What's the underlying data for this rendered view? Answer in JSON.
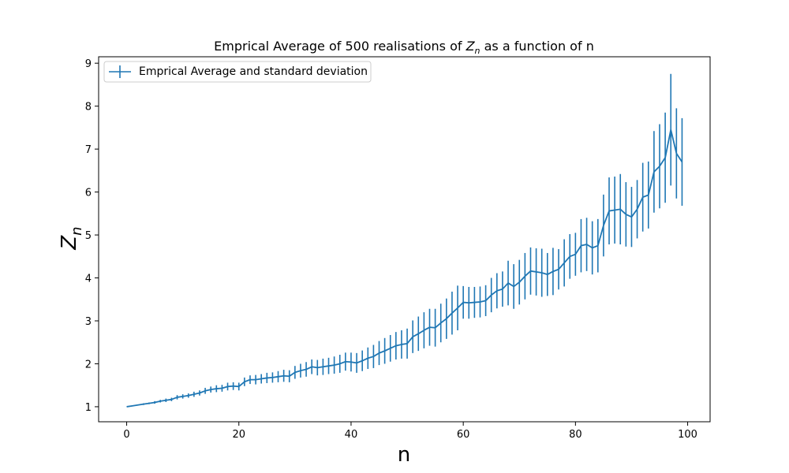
{
  "chart_data": {
    "type": "line",
    "title_prefix": "Emprical Average of 500 realisations of ",
    "title_var": "Z",
    "title_sub": "n",
    "title_suffix": " as a function of n",
    "xlabel": "n",
    "ylabel_var": "Z",
    "ylabel_sub": "n",
    "xlim": [
      -5,
      104
    ],
    "ylim": [
      0.65,
      9.15
    ],
    "xticks": [
      0,
      20,
      40,
      60,
      80,
      100
    ],
    "yticks": [
      1,
      2,
      3,
      4,
      5,
      6,
      7,
      8,
      9
    ],
    "legend": {
      "label": "Emprical Average and standard deviation",
      "position": "top-left"
    },
    "grid": false,
    "color": "#1f77b4",
    "series": [
      {
        "name": "Emprical Average and standard deviation",
        "x": [
          0,
          1,
          2,
          3,
          4,
          5,
          6,
          7,
          8,
          9,
          10,
          11,
          12,
          13,
          14,
          15,
          16,
          17,
          18,
          19,
          20,
          21,
          22,
          23,
          24,
          25,
          26,
          27,
          28,
          29,
          30,
          31,
          32,
          33,
          34,
          35,
          36,
          37,
          38,
          39,
          40,
          41,
          42,
          43,
          44,
          45,
          46,
          47,
          48,
          49,
          50,
          51,
          52,
          53,
          54,
          55,
          56,
          57,
          58,
          59,
          60,
          61,
          62,
          63,
          64,
          65,
          66,
          67,
          68,
          69,
          70,
          71,
          72,
          73,
          74,
          75,
          76,
          77,
          78,
          79,
          80,
          81,
          82,
          83,
          84,
          85,
          86,
          87,
          88,
          89,
          90,
          91,
          92,
          93,
          94,
          95,
          96,
          97,
          98,
          99
        ],
        "y": [
          1.0,
          1.02,
          1.04,
          1.06,
          1.08,
          1.1,
          1.13,
          1.15,
          1.17,
          1.22,
          1.24,
          1.26,
          1.29,
          1.32,
          1.37,
          1.4,
          1.42,
          1.43,
          1.47,
          1.48,
          1.47,
          1.58,
          1.63,
          1.63,
          1.65,
          1.67,
          1.68,
          1.7,
          1.72,
          1.71,
          1.8,
          1.84,
          1.87,
          1.93,
          1.91,
          1.93,
          1.95,
          1.97,
          2.0,
          2.05,
          2.04,
          2.02,
          2.07,
          2.13,
          2.17,
          2.25,
          2.3,
          2.36,
          2.42,
          2.45,
          2.47,
          2.63,
          2.7,
          2.78,
          2.85,
          2.84,
          2.95,
          3.05,
          3.18,
          3.3,
          3.43,
          3.42,
          3.43,
          3.44,
          3.47,
          3.6,
          3.7,
          3.74,
          3.88,
          3.8,
          3.9,
          4.04,
          4.16,
          4.14,
          4.12,
          4.08,
          4.15,
          4.2,
          4.35,
          4.5,
          4.55,
          4.75,
          4.78,
          4.7,
          4.75,
          5.22,
          5.56,
          5.58,
          5.6,
          5.48,
          5.42,
          5.6,
          5.88,
          5.93,
          6.47,
          6.6,
          6.8,
          7.45,
          6.9,
          6.7
        ],
        "err": [
          0.0,
          0.01,
          0.01,
          0.02,
          0.02,
          0.03,
          0.03,
          0.04,
          0.04,
          0.05,
          0.05,
          0.05,
          0.06,
          0.06,
          0.07,
          0.07,
          0.08,
          0.08,
          0.09,
          0.09,
          0.09,
          0.1,
          0.1,
          0.11,
          0.11,
          0.12,
          0.12,
          0.13,
          0.14,
          0.14,
          0.15,
          0.16,
          0.17,
          0.17,
          0.18,
          0.19,
          0.19,
          0.2,
          0.21,
          0.21,
          0.22,
          0.23,
          0.24,
          0.25,
          0.27,
          0.28,
          0.3,
          0.31,
          0.32,
          0.33,
          0.35,
          0.38,
          0.4,
          0.42,
          0.43,
          0.44,
          0.45,
          0.47,
          0.5,
          0.52,
          0.38,
          0.37,
          0.36,
          0.36,
          0.36,
          0.4,
          0.41,
          0.41,
          0.52,
          0.52,
          0.52,
          0.54,
          0.55,
          0.55,
          0.56,
          0.5,
          0.55,
          0.47,
          0.55,
          0.52,
          0.5,
          0.62,
          0.62,
          0.62,
          0.62,
          0.72,
          0.78,
          0.78,
          0.82,
          0.75,
          0.7,
          0.68,
          0.8,
          0.78,
          0.95,
          0.98,
          1.05,
          1.3,
          1.05,
          1.02
        ]
      }
    ]
  }
}
